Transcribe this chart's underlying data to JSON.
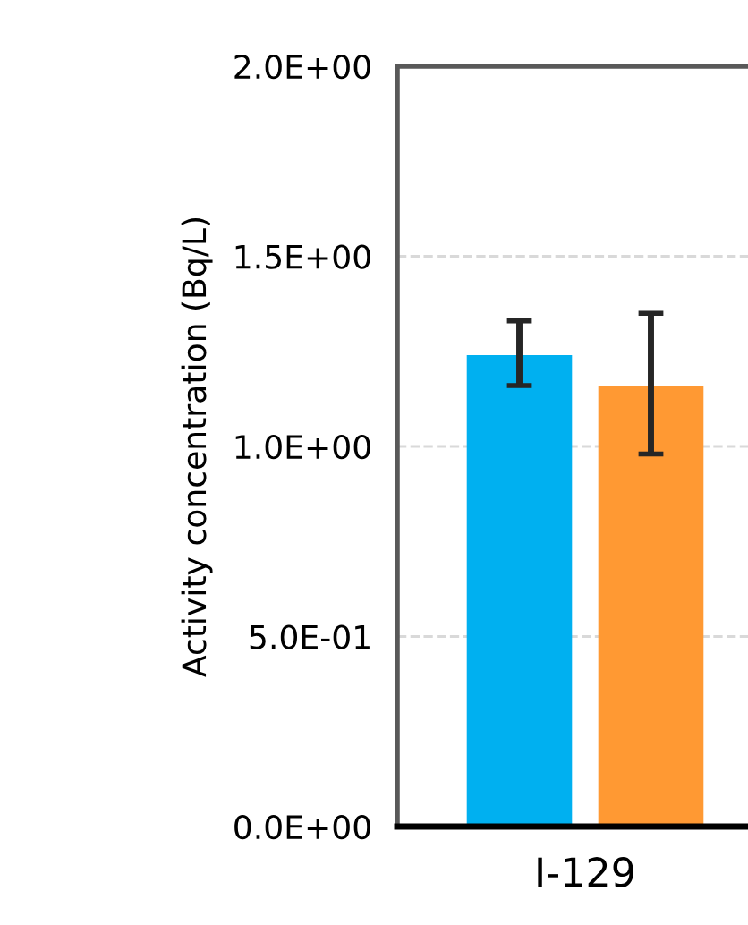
{
  "chart_data": {
    "type": "bar",
    "ylabel": "Activity concentration (Bq/L)",
    "categories": [
      "I-129"
    ],
    "series": [
      {
        "color": "#00b0f0",
        "values": [
          1.24
        ],
        "errors": [
          [
            1.16,
            1.33
          ]
        ]
      },
      {
        "color": "#ff9933",
        "values": [
          1.16
        ],
        "errors": [
          [
            0.98,
            1.35
          ]
        ]
      }
    ],
    "ylim": [
      0,
      2
    ],
    "yticks": [
      {
        "value": 0,
        "label": "0.0E+00"
      },
      {
        "value": 0.5,
        "label": "5.0E-01"
      },
      {
        "value": 1,
        "label": "1.0E+00"
      },
      {
        "value": 1.5,
        "label": "1.5E+00"
      },
      {
        "value": 2,
        "label": "2.0E+00"
      }
    ],
    "grid": "y"
  }
}
